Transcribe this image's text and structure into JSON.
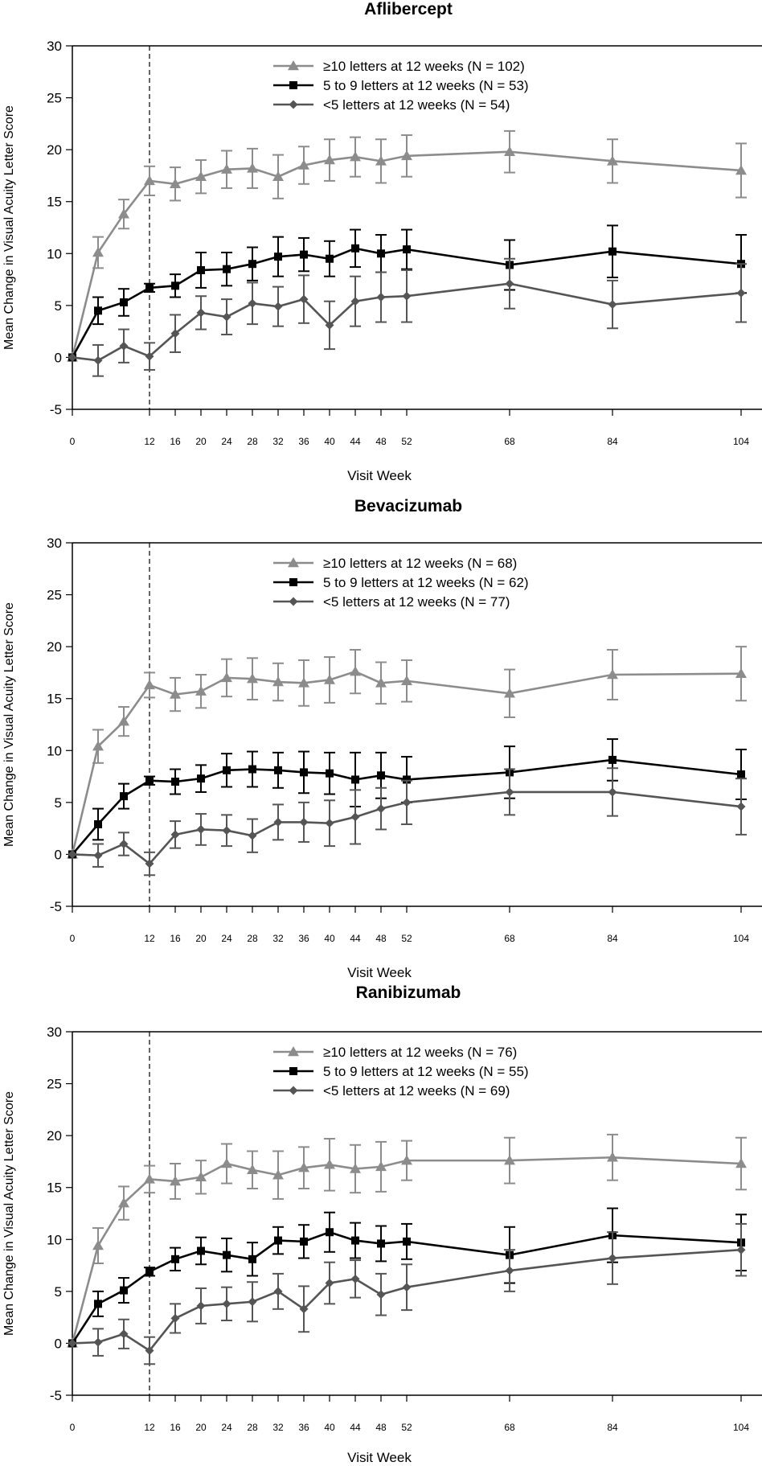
{
  "chart_data": [
    {
      "type": "line",
      "title": "Aflibercept",
      "xlabel": "Visit Week",
      "ylabel": "Mean Change in Visual Acuity Letter Score",
      "ylim": [
        -5,
        30
      ],
      "yticks": [
        -5,
        0,
        5,
        10,
        15,
        20,
        25,
        30
      ],
      "xticks": [
        0,
        12,
        16,
        20,
        24,
        28,
        32,
        36,
        40,
        44,
        48,
        52,
        68,
        84,
        104
      ],
      "reference_line_x": 12,
      "legend_position": "top-center",
      "series": [
        {
          "name": "≥10 letters at 12 weeks (N = 102)",
          "marker": "triangle",
          "color": "#8c8c8c",
          "x": [
            0,
            4,
            8,
            12,
            16,
            20,
            24,
            28,
            32,
            36,
            40,
            44,
            48,
            52,
            68,
            84,
            104
          ],
          "y": [
            0,
            10.1,
            13.8,
            17.0,
            16.7,
            17.4,
            18.1,
            18.2,
            17.4,
            18.5,
            19.0,
            19.3,
            18.9,
            19.4,
            19.8,
            18.9,
            18.0
          ],
          "err": [
            0,
            1.5,
            1.4,
            1.4,
            1.6,
            1.6,
            1.8,
            1.9,
            2.1,
            1.8,
            2.0,
            1.9,
            2.1,
            2.0,
            2.0,
            2.1,
            2.6
          ]
        },
        {
          "name": "5 to 9 letters at 12 weeks (N = 53)",
          "marker": "square",
          "color": "#000000",
          "x": [
            0,
            4,
            8,
            12,
            16,
            20,
            24,
            28,
            32,
            36,
            40,
            44,
            48,
            52,
            68,
            84,
            104
          ],
          "y": [
            0,
            4.5,
            5.3,
            6.7,
            6.9,
            8.4,
            8.5,
            9.0,
            9.7,
            9.9,
            9.5,
            10.5,
            10.0,
            10.4,
            8.9,
            10.2,
            9.0
          ],
          "err": [
            0,
            1.3,
            1.3,
            0.4,
            1.1,
            1.7,
            1.6,
            1.6,
            1.9,
            1.6,
            1.7,
            1.8,
            1.8,
            1.9,
            2.4,
            2.5,
            2.8
          ]
        },
        {
          "name": "<5 letters at 12 weeks (N = 54)",
          "marker": "diamond",
          "color": "#555555",
          "x": [
            0,
            4,
            8,
            12,
            16,
            20,
            24,
            28,
            32,
            36,
            40,
            44,
            48,
            52,
            68,
            84,
            104
          ],
          "y": [
            0,
            -0.3,
            1.1,
            0.1,
            2.3,
            4.3,
            3.9,
            5.2,
            4.9,
            5.6,
            3.1,
            5.4,
            5.8,
            5.9,
            7.1,
            5.1,
            6.2
          ],
          "err": [
            0,
            1.5,
            1.6,
            1.3,
            1.8,
            1.6,
            1.7,
            2.0,
            1.9,
            2.3,
            2.3,
            2.4,
            2.4,
            2.5,
            2.4,
            2.3,
            2.8
          ]
        }
      ]
    },
    {
      "type": "line",
      "title": "Bevacizumab",
      "xlabel": "Visit Week",
      "ylabel": "Mean Change in Visual Acuity Letter Score",
      "ylim": [
        -5,
        30
      ],
      "yticks": [
        -5,
        0,
        5,
        10,
        15,
        20,
        25,
        30
      ],
      "xticks": [
        0,
        12,
        16,
        20,
        24,
        28,
        32,
        36,
        40,
        44,
        48,
        52,
        68,
        84,
        104
      ],
      "reference_line_x": 12,
      "legend_position": "top-center",
      "series": [
        {
          "name": "≥10 letters at 12 weeks (N = 68)",
          "marker": "triangle",
          "color": "#8c8c8c",
          "x": [
            0,
            4,
            8,
            12,
            16,
            20,
            24,
            28,
            32,
            36,
            40,
            44,
            48,
            52,
            68,
            84,
            104
          ],
          "y": [
            0,
            10.4,
            12.8,
            16.3,
            15.4,
            15.7,
            17.0,
            16.9,
            16.6,
            16.5,
            16.8,
            17.6,
            16.5,
            16.7,
            15.5,
            17.3,
            17.4
          ],
          "err": [
            0,
            1.6,
            1.4,
            1.2,
            1.6,
            1.6,
            1.8,
            2.0,
            1.8,
            2.2,
            2.2,
            2.1,
            2.0,
            2.0,
            2.3,
            2.4,
            2.6
          ]
        },
        {
          "name": "5 to 9 letters at 12 weeks (N = 62)",
          "marker": "square",
          "color": "#000000",
          "x": [
            0,
            4,
            8,
            12,
            16,
            20,
            24,
            28,
            32,
            36,
            40,
            44,
            48,
            52,
            68,
            84,
            104
          ],
          "y": [
            0,
            2.9,
            5.6,
            7.1,
            7.0,
            7.3,
            8.1,
            8.2,
            8.1,
            7.9,
            7.8,
            7.2,
            7.6,
            7.2,
            7.9,
            9.1,
            7.7
          ],
          "err": [
            0,
            1.5,
            1.2,
            0.4,
            1.2,
            1.3,
            1.6,
            1.7,
            1.7,
            2.0,
            2.0,
            2.6,
            2.2,
            2.2,
            2.5,
            2.0,
            2.4
          ]
        },
        {
          "name": "<5 letters at 12 weeks (N = 77)",
          "marker": "diamond",
          "color": "#555555",
          "x": [
            0,
            4,
            8,
            12,
            16,
            20,
            24,
            28,
            32,
            36,
            40,
            44,
            48,
            52,
            68,
            84,
            104
          ],
          "y": [
            0,
            -0.1,
            1.0,
            -0.9,
            1.9,
            2.4,
            2.3,
            1.8,
            3.1,
            3.1,
            3.0,
            3.6,
            4.4,
            5.0,
            6.0,
            6.0,
            4.6
          ],
          "err": [
            0,
            1.1,
            1.1,
            1.1,
            1.3,
            1.5,
            1.5,
            1.6,
            1.7,
            1.9,
            2.2,
            2.6,
            2.0,
            2.1,
            2.2,
            2.3,
            2.7
          ]
        }
      ]
    },
    {
      "type": "line",
      "title": "Ranibizumab",
      "xlabel": "Visit Week",
      "ylabel": "Mean Change in Visual Acuity Letter Score",
      "ylim": [
        -5,
        30
      ],
      "yticks": [
        -5,
        0,
        5,
        10,
        15,
        20,
        25,
        30
      ],
      "xticks": [
        0,
        12,
        16,
        20,
        24,
        28,
        32,
        36,
        40,
        44,
        48,
        52,
        68,
        84,
        104
      ],
      "reference_line_x": 12,
      "legend_position": "top-center",
      "series": [
        {
          "name": "≥10 letters at 12 weeks (N = 76)",
          "marker": "triangle",
          "color": "#8c8c8c",
          "x": [
            0,
            4,
            8,
            12,
            16,
            20,
            24,
            28,
            32,
            36,
            40,
            44,
            48,
            52,
            68,
            84,
            104
          ],
          "y": [
            0,
            9.4,
            13.5,
            15.8,
            15.6,
            16.0,
            17.3,
            16.7,
            16.2,
            16.9,
            17.2,
            16.8,
            17.0,
            17.6,
            17.6,
            17.9,
            17.3
          ],
          "err": [
            0,
            1.7,
            1.6,
            1.3,
            1.7,
            1.6,
            1.9,
            1.8,
            2.3,
            2.0,
            2.5,
            2.3,
            2.4,
            1.9,
            2.2,
            2.2,
            2.5
          ]
        },
        {
          "name": "5 to 9 letters at 12 weeks (N = 55)",
          "marker": "square",
          "color": "#000000",
          "x": [
            0,
            4,
            8,
            12,
            16,
            20,
            24,
            28,
            32,
            36,
            40,
            44,
            48,
            52,
            68,
            84,
            104
          ],
          "y": [
            0,
            3.8,
            5.1,
            6.9,
            8.1,
            8.9,
            8.5,
            8.1,
            9.9,
            9.8,
            10.7,
            9.9,
            9.6,
            9.8,
            8.5,
            10.4,
            9.7
          ],
          "err": [
            0,
            1.2,
            1.2,
            0.4,
            1.1,
            1.3,
            1.6,
            1.6,
            1.3,
            1.6,
            1.9,
            1.7,
            1.7,
            1.7,
            2.7,
            2.6,
            2.7
          ]
        },
        {
          "name": "<5 letters at 12 weeks (N = 69)",
          "marker": "diamond",
          "color": "#555555",
          "x": [
            0,
            4,
            8,
            12,
            16,
            20,
            24,
            28,
            32,
            36,
            40,
            44,
            48,
            52,
            68,
            84,
            104
          ],
          "y": [
            0,
            0.1,
            0.9,
            -0.7,
            2.4,
            3.6,
            3.8,
            4.0,
            5.0,
            3.3,
            5.8,
            6.2,
            4.7,
            5.4,
            7.0,
            8.2,
            9.0
          ],
          "err": [
            0,
            1.3,
            1.4,
            1.3,
            1.4,
            1.7,
            1.6,
            1.9,
            1.7,
            2.2,
            2.0,
            1.8,
            2.0,
            2.2,
            2.0,
            2.5,
            2.5
          ]
        }
      ]
    }
  ]
}
